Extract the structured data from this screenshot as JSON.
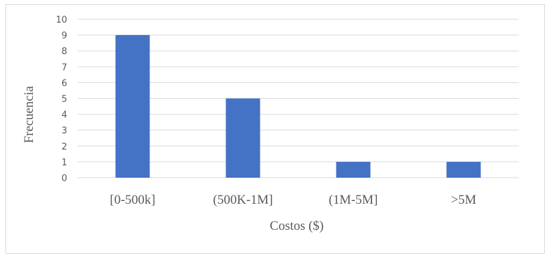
{
  "chart_data": {
    "type": "bar",
    "categories": [
      "[0-500k]",
      "(500K-1M]",
      "(1M-5M]",
      ">5M"
    ],
    "values": [
      9,
      5,
      1,
      1
    ],
    "title": "",
    "xlabel": "Costos ($)",
    "ylabel": "Frecuencia",
    "ylim": [
      0,
      10
    ],
    "yticks": [
      0,
      1,
      2,
      3,
      4,
      5,
      6,
      7,
      8,
      9,
      10
    ],
    "grid": true,
    "legend": "none",
    "colors": {
      "bar": "#4472C4",
      "grid": "#d9d9d9",
      "text": "#595959"
    }
  }
}
